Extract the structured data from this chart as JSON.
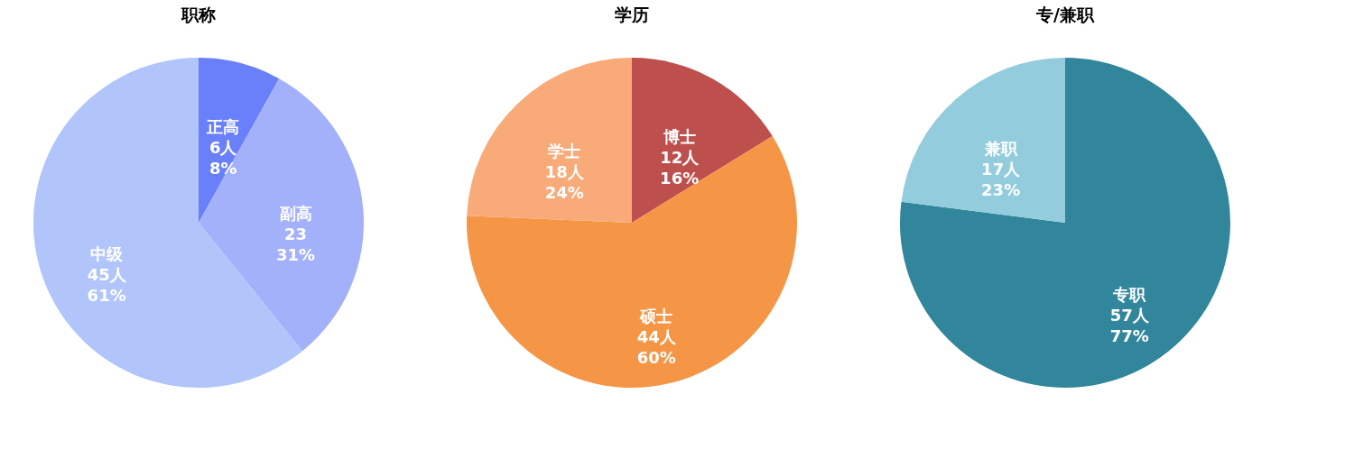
{
  "chart_data": [
    {
      "type": "pie",
      "title": "职称",
      "categories": [
        "正高",
        "副高",
        "中级"
      ],
      "values": [
        6,
        23,
        45
      ],
      "colors": [
        "#6a80fa",
        "#a3b1fb",
        "#b1c5fb"
      ],
      "value_labels": [
        "6人\n8%",
        "23\n31%",
        "45人\n61%"
      ]
    },
    {
      "type": "pie",
      "title": "学历",
      "categories": [
        "博士",
        "硕士",
        "学士"
      ],
      "values": [
        12,
        44,
        18
      ],
      "colors": [
        "#bd4f4c",
        "#f59647",
        "#f8aa78"
      ],
      "value_labels": [
        "12人\n16%",
        "44人\n60%",
        "18人\n24%"
      ]
    },
    {
      "type": "pie",
      "title": "专/兼职",
      "categories": [
        "专职",
        "兼职"
      ],
      "values": [
        57,
        17
      ],
      "colors": [
        "#31869b",
        "#93cddd"
      ],
      "value_labels": [
        "57人\n77%",
        "17人\n23%"
      ]
    }
  ]
}
